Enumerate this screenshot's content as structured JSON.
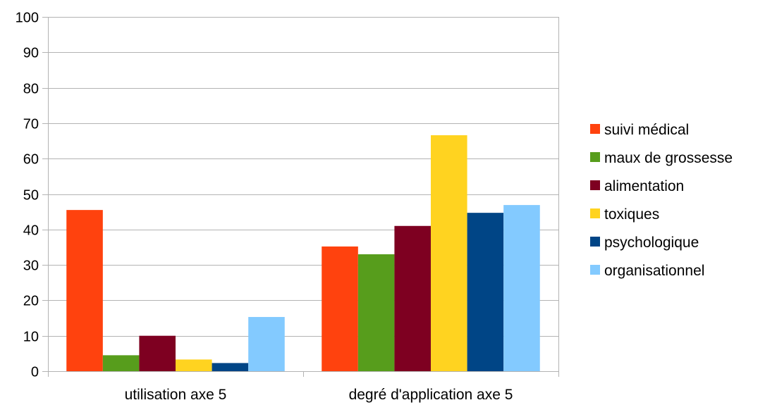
{
  "chart_data": {
    "type": "bar",
    "categories": [
      "utilisation axe 5",
      "degré d'application axe 5"
    ],
    "series": [
      {
        "name": "suivi médical",
        "color": "#ff420e",
        "values": [
          45.5,
          35.2
        ]
      },
      {
        "name": "maux de grossesse",
        "color": "#579d1c",
        "values": [
          4.5,
          33.0
        ]
      },
      {
        "name": "alimentation",
        "color": "#7e0021",
        "values": [
          10.0,
          41.0
        ]
      },
      {
        "name": "toxiques",
        "color": "#ffd320",
        "values": [
          3.3,
          66.6
        ]
      },
      {
        "name": "psychologique",
        "color": "#004586",
        "values": [
          2.3,
          44.7
        ]
      },
      {
        "name": "organisationnel",
        "color": "#83caff",
        "values": [
          15.3,
          46.9
        ]
      }
    ],
    "ylim": [
      0,
      100
    ],
    "yticks": [
      "0",
      "10",
      "20",
      "30",
      "40",
      "50",
      "60",
      "70",
      "80",
      "90",
      "100"
    ],
    "grid": true,
    "legend_position": "right",
    "title": "",
    "xlabel": "",
    "ylabel": ""
  }
}
